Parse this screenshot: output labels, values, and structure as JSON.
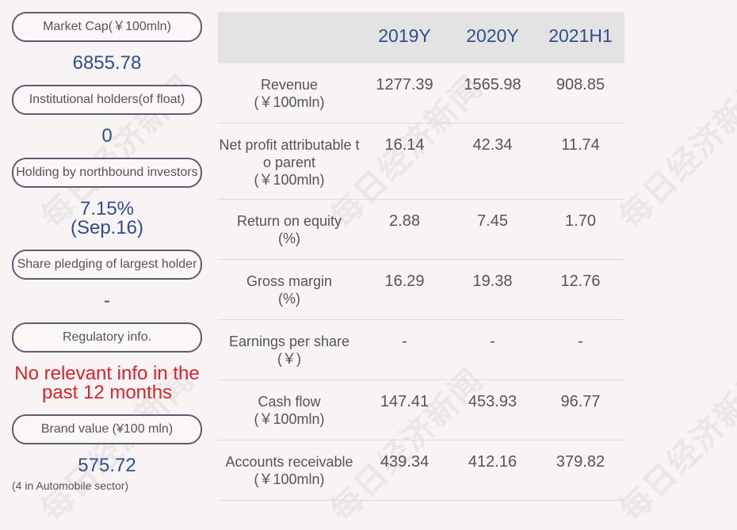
{
  "watermark": "每日经济新闻",
  "left_panel": {
    "market_cap": {
      "label": "Market Cap(￥100mln)",
      "value": "6855.78"
    },
    "institutional": {
      "label": "Institutional holders(of float)",
      "value": "0"
    },
    "northbound": {
      "label": "Holding by northbound investors",
      "value": "7.15%",
      "date": "(Sep.16)"
    },
    "pledging": {
      "label": "Share pledging of largest holder",
      "value": "-"
    },
    "regulatory": {
      "label": "Regulatory info.",
      "value": "No relevant info in the past 12 months"
    },
    "brand": {
      "label": "Brand value (¥100 mln)",
      "value": "575.72",
      "note": "(4 in Automobile sector)"
    }
  },
  "table": {
    "columns": [
      "2019Y",
      "2020Y",
      "2021H1"
    ],
    "rows": [
      {
        "label": "Revenue",
        "unit": "(￥100mln)",
        "values": [
          "1277.39",
          "1565.98",
          "908.85"
        ]
      },
      {
        "label": "Net profit attributable to parent",
        "unit": "(￥100mln)",
        "values": [
          "16.14",
          "42.34",
          "11.74"
        ]
      },
      {
        "label": "Return on equity",
        "unit": "(%)",
        "values": [
          "2.88",
          "7.45",
          "1.70"
        ]
      },
      {
        "label": "Gross margin",
        "unit": "(%)",
        "values": [
          "16.29",
          "19.38",
          "12.76"
        ]
      },
      {
        "label": "Earnings per share",
        "unit": "(￥)",
        "values": [
          "-",
          "-",
          "-"
        ]
      },
      {
        "label": "Cash flow",
        "unit": "(￥100mln)",
        "values": [
          "147.41",
          "453.93",
          "96.77"
        ]
      },
      {
        "label": "Accounts receivable",
        "unit": "(￥100mln)",
        "values": [
          "439.34",
          "412.16",
          "379.82"
        ]
      }
    ]
  },
  "colors": {
    "background": "#f8f3f4",
    "value_blue": "#2f4f8a",
    "alert_red": "#d9242a",
    "header_gray": "#e3e3e3"
  }
}
